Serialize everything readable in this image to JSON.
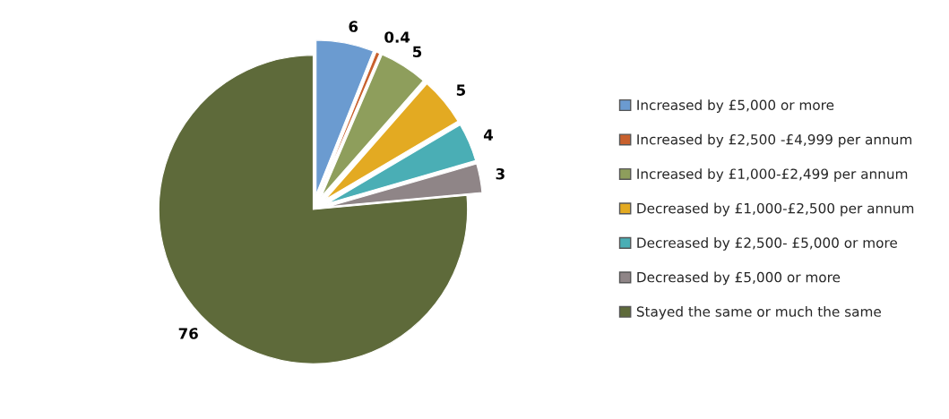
{
  "chart_data": {
    "type": "pie",
    "categories": [
      "Increased by £5,000 or more",
      "Increased by £2,500 -£4,999 per annum",
      "Increased by £1,000-£2,499 per annum",
      "Decreased by £1,000-£2,500 per annum",
      "Decreased by £2,500- £5,000 or more",
      "Decreased by £5,000 or more",
      "Stayed the same or much the same"
    ],
    "values": [
      6,
      0.4,
      5,
      5,
      4,
      3,
      76
    ],
    "colors": [
      "#6b9bd0",
      "#c8602d",
      "#8e9e5c",
      "#e3aa22",
      "#4aaeb5",
      "#8f8587",
      "#5e6a3a"
    ],
    "data_labels": true,
    "legend": "right"
  }
}
